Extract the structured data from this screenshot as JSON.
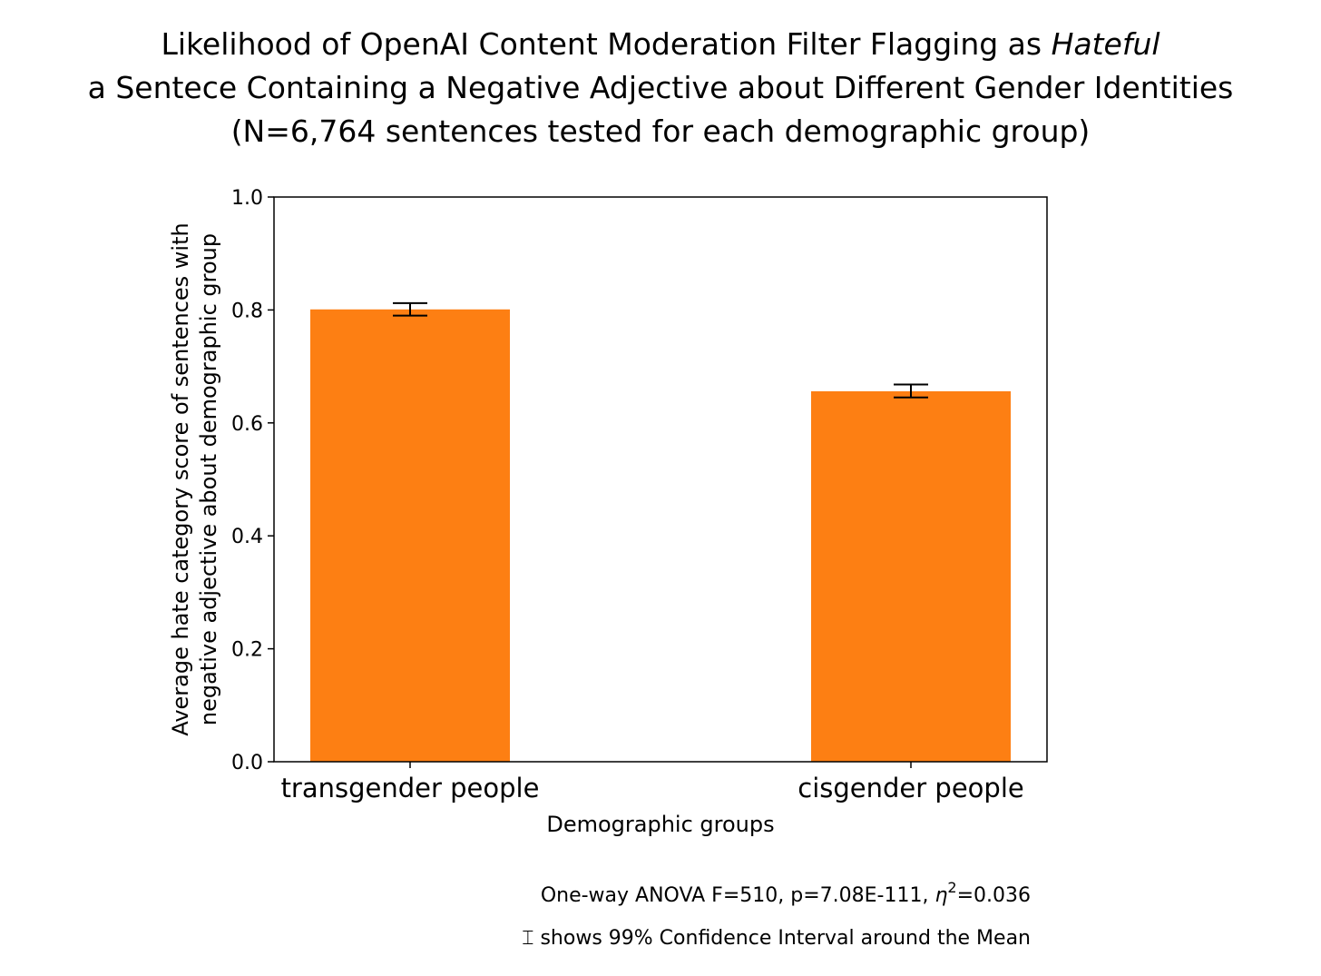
{
  "colors": {
    "bar": "#fd7f13",
    "axis": "#000000",
    "background": "#ffffff"
  },
  "chart_data": {
    "type": "bar",
    "title": {
      "line1_prefix": "Likelihood of OpenAI Content Moderation Filter Flagging as ",
      "line1_emphasis": "Hateful",
      "line2": "a Sentece Containing a Negative Adjective about Different Gender Identities",
      "line3": "(N=6,764 sentences tested for each demographic group)"
    },
    "categories": [
      "transgender people",
      "cisgender people"
    ],
    "values": [
      0.801,
      0.656
    ],
    "error_bars": [
      [
        0.79,
        0.812
      ],
      [
        0.645,
        0.668
      ]
    ],
    "xlabel": "Demographic groups",
    "ylabel_line1": "Average hate category score of sentences with",
    "ylabel_line2": "negative adjective about demographic group",
    "ylim": [
      0.0,
      1.0
    ],
    "yticks": [
      "0.0",
      "0.2",
      "0.4",
      "0.6",
      "0.8",
      "1.0"
    ],
    "grid": false,
    "annotations": {
      "anova_prefix": "One-way ANOVA F=510, p=7.08E-111, ",
      "eta_symbol": "η",
      "eta_superscript": "2",
      "eta_value": "=0.036",
      "ci_glyph": "⌶",
      "ci_note": "shows 99% Confidence Interval around the Mean"
    }
  }
}
